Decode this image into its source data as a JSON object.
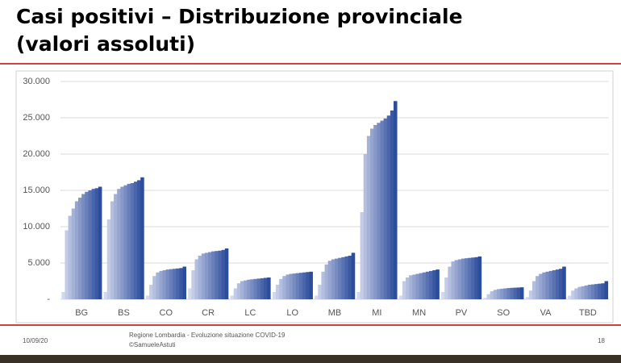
{
  "chart_data": {
    "type": "grouped-series-bar",
    "title": [
      "Casi positivi – Distribuzione provinciale",
      "(valori assoluti)"
    ],
    "color_start": "#d2d8ee",
    "color_end": "#2c4c9c",
    "categories": [
      "BG",
      "BS",
      "CO",
      "CR",
      "LC",
      "LO",
      "MB",
      "MI",
      "MN",
      "PV",
      "SO",
      "VA",
      "TBD"
    ],
    "groups": [
      [
        1000,
        9500,
        11500,
        12500,
        13500,
        14000,
        14500,
        14800,
        15000,
        15200,
        15300,
        15500
      ],
      [
        1000,
        11000,
        13500,
        14500,
        15200,
        15500,
        15700,
        15900,
        16000,
        16200,
        16400,
        16800
      ],
      [
        500,
        2000,
        3200,
        3700,
        3900,
        4000,
        4100,
        4150,
        4200,
        4250,
        4300,
        4500
      ],
      [
        1500,
        4000,
        5500,
        6000,
        6300,
        6400,
        6500,
        6600,
        6650,
        6700,
        6800,
        7000
      ],
      [
        500,
        1500,
        2200,
        2500,
        2600,
        2700,
        2750,
        2800,
        2850,
        2900,
        2950,
        3000
      ],
      [
        1000,
        2000,
        2800,
        3200,
        3400,
        3500,
        3550,
        3600,
        3650,
        3700,
        3750,
        3800
      ],
      [
        500,
        2000,
        3800,
        4800,
        5300,
        5500,
        5600,
        5700,
        5800,
        5900,
        6000,
        6400
      ],
      [
        1000,
        12000,
        20000,
        22500,
        23500,
        24000,
        24300,
        24600,
        24900,
        25300,
        26000,
        27300
      ],
      [
        500,
        2500,
        3000,
        3300,
        3400,
        3500,
        3600,
        3700,
        3800,
        3900,
        4000,
        4100
      ],
      [
        1000,
        3000,
        4500,
        5200,
        5400,
        5500,
        5600,
        5650,
        5700,
        5750,
        5800,
        5900
      ],
      [
        200,
        700,
        1100,
        1300,
        1400,
        1450,
        1500,
        1550,
        1580,
        1600,
        1620,
        1650
      ],
      [
        300,
        1200,
        2500,
        3200,
        3500,
        3700,
        3800,
        3900,
        4000,
        4100,
        4200,
        4500
      ],
      [
        500,
        1200,
        1500,
        1700,
        1800,
        1900,
        2000,
        2050,
        2100,
        2150,
        2200,
        2500
      ]
    ],
    "ylim": [
      0,
      30000
    ],
    "yticks": [
      {
        "value": 0,
        "label": "-"
      },
      {
        "value": 5000,
        "label": "5.000"
      },
      {
        "value": 10000,
        "label": "10.000"
      },
      {
        "value": 15000,
        "label": "15.000"
      },
      {
        "value": 20000,
        "label": "20.000"
      },
      {
        "value": 25000,
        "label": "25.000"
      },
      {
        "value": 30000,
        "label": "30.000"
      }
    ],
    "grid": true
  },
  "footer": {
    "date": "10/09/20",
    "source": "Regione Lombardia - Evoluzione situazione COVID-19",
    "credit": "©SamueleAstuti",
    "page": "18"
  }
}
